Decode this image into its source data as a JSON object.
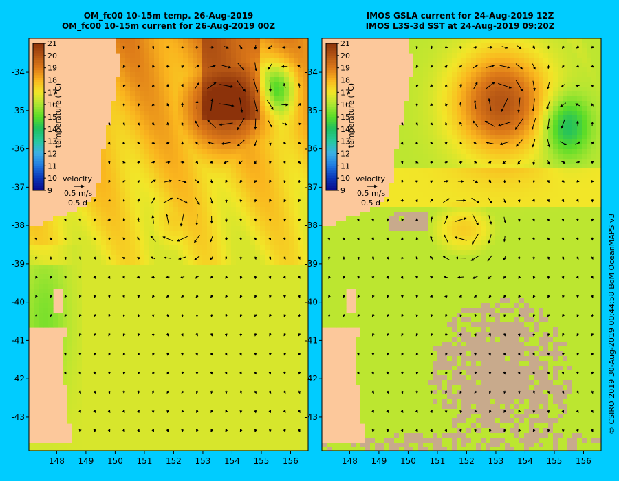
{
  "colors": {
    "background": "#00ccff",
    "land": "#fcc89b",
    "cloud_mask": "#c8aa8c",
    "arrow": "#000000",
    "colormap": [
      "#08088a",
      "#0a36b8",
      "#1f78e0",
      "#3cb0e6",
      "#28c8a0",
      "#20c060",
      "#5adc28",
      "#aee632",
      "#f2e628",
      "#fab41e",
      "#dc7818",
      "#b45514",
      "#8c320a"
    ]
  },
  "credit": "© CSIRO 2019   30-Aug-2019 00:44:58 BoM OceanMAPS v3",
  "panels": [
    {
      "title_line1": "OM_fc00 10-15m temp. 26-Aug-2019",
      "title_line2": "OM_fc00 10-15m current for 26-Aug-2019 00Z",
      "colorbar_label": "temperature (°C)",
      "velocity_label": "velocity",
      "velocity_speed": "0.5 m/s",
      "velocity_time": "0.5 d"
    },
    {
      "title_line1": "IMOS GSLA current for 24-Aug-2019 12Z",
      "title_line2": "IMOS L3S-3d SST at 24-Aug-2019 09:20Z",
      "colorbar_label": "temperature (°C)",
      "velocity_label": "velocity",
      "velocity_speed": "0.5 m/s",
      "velocity_time": "0.5 d"
    }
  ],
  "chart_data": {
    "type": "heatmap",
    "x_ticks": [
      "148",
      "149",
      "150",
      "151",
      "152",
      "153",
      "154",
      "155",
      "156"
    ],
    "y_ticks": [
      "-34",
      "-35",
      "-36",
      "-37",
      "-38",
      "-39",
      "-40",
      "-41",
      "-42",
      "-43"
    ],
    "xlim": [
      147.05,
      156.6
    ],
    "ylim": [
      -43.88,
      -33.12
    ],
    "colorbar_ticks": [
      "9",
      "10",
      "11",
      "12",
      "13",
      "14",
      "15",
      "16",
      "17",
      "18",
      "19",
      "20",
      "21"
    ],
    "colorbar_range": [
      9,
      21
    ],
    "features": {
      "warm_core_north_panel1": {
        "lon": 153.8,
        "lat": -34.9,
        "temp": 20.5
      },
      "warm_eddy_panel1": {
        "lon": 152.1,
        "lat": -37.8,
        "temp": 17.5
      },
      "cool_eddy_northeast_panel1": {
        "lon": 155.6,
        "lat": -34.4,
        "temp": 15.5
      },
      "warm_core_north_panel2": {
        "lon": 153.2,
        "lat": -34.8,
        "temp": 20.0
      },
      "warm_eddy_panel2": {
        "lon": 151.9,
        "lat": -38.1,
        "temp": 17.5
      },
      "cool_eddy_northeast_panel2": {
        "lon": 155.4,
        "lat": -35.4,
        "temp": 15.5
      }
    }
  }
}
